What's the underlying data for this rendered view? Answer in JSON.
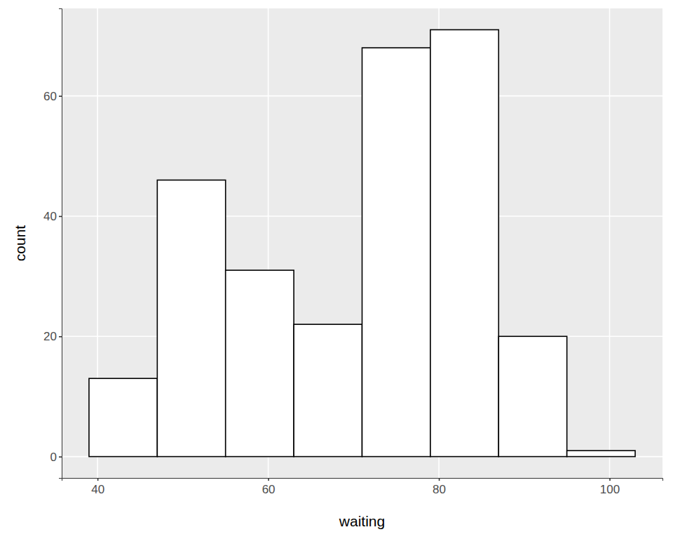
{
  "chart_data": {
    "type": "histogram",
    "xlabel": "waiting",
    "ylabel": "count",
    "bins": [
      39,
      47,
      55,
      63,
      71,
      79,
      87,
      95,
      103
    ],
    "values": [
      13,
      46,
      31,
      22,
      68,
      71,
      20,
      1
    ],
    "color": "#FFFFFF",
    "xlim": [
      35.8,
      106.2
    ],
    "xticks": [
      40,
      60,
      80,
      100
    ],
    "ylim": [
      -3.55,
      74.55
    ],
    "yticks": [
      0,
      20,
      40,
      60
    ],
    "grid": true
  }
}
